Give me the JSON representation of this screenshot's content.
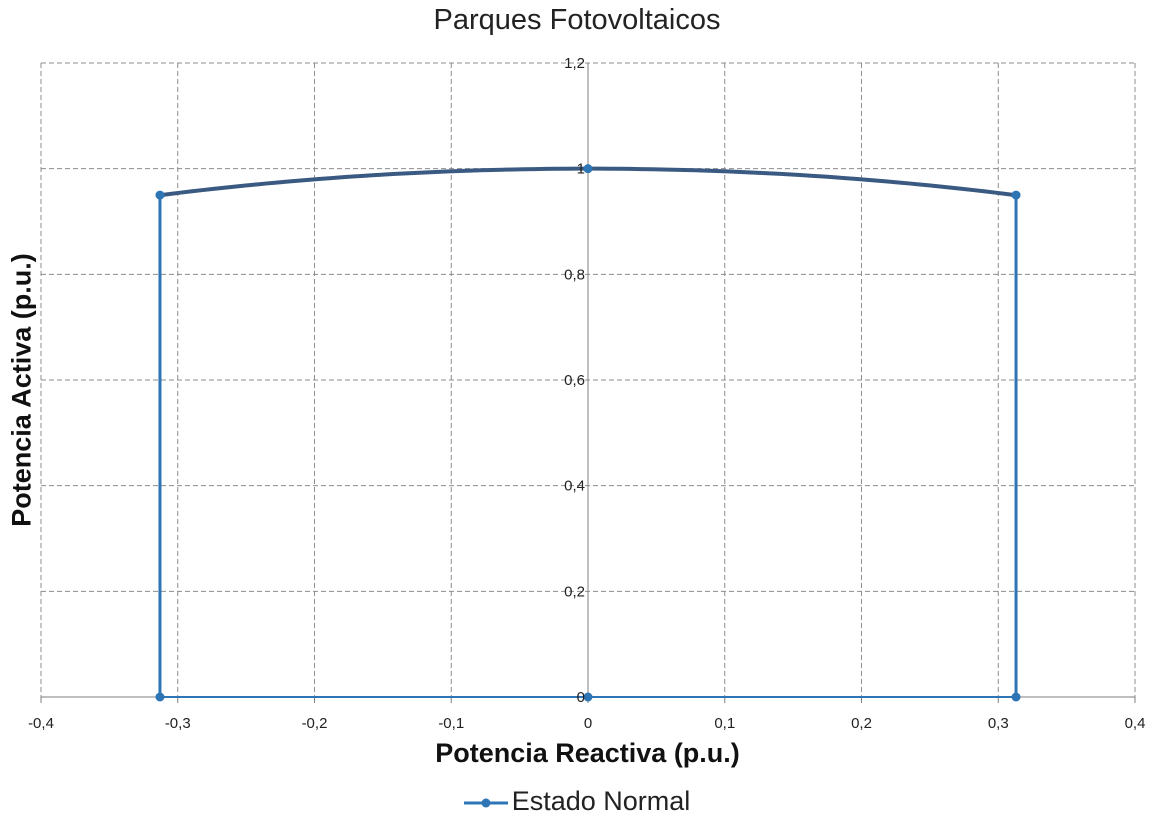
{
  "chart_data": {
    "type": "line",
    "title": "Parques Fotovoltaicos",
    "xlabel": "Potencia Reactiva (p.u.)",
    "ylabel": "Potencia Activa (p.u.)",
    "xlim": [
      -0.4,
      0.4
    ],
    "ylim": [
      0,
      1.2
    ],
    "x_ticks": [
      "-0,4",
      "-0,3",
      "-0,2",
      "-0,1",
      "0",
      "0,1",
      "0,2",
      "0,3",
      "0,4"
    ],
    "y_ticks": [
      "0",
      "0,2",
      "0,4",
      "0,6",
      "0,8",
      "1",
      "1,2"
    ],
    "grid": true,
    "legend_position": "bottom",
    "series": [
      {
        "name": "Estado Normal",
        "color": "#2e75b6",
        "curve_color": "#3b5a82",
        "x": [
          -0.313,
          -0.313,
          0.0,
          0.313,
          0.313,
          0.0,
          -0.313
        ],
        "y": [
          0.0,
          0.95,
          1.0,
          0.95,
          0.0,
          0.0,
          0.0
        ],
        "arc": {
          "from": [
            -0.313,
            0.95
          ],
          "to": [
            0.313,
            0.95
          ],
          "radius": 1.0
        }
      }
    ]
  }
}
